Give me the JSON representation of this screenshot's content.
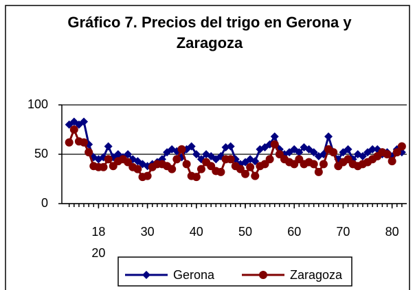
{
  "chart_data": {
    "type": "line",
    "title": "Gráfico 7. Precios del trigo en Gerona y Zaragoza",
    "x": [
      14,
      15,
      16,
      17,
      18,
      19,
      20,
      21,
      22,
      23,
      24,
      25,
      26,
      27,
      28,
      29,
      30,
      31,
      32,
      33,
      34,
      35,
      36,
      37,
      38,
      39,
      40,
      41,
      42,
      43,
      44,
      45,
      46,
      47,
      48,
      49,
      50,
      51,
      52,
      53,
      54,
      55,
      56,
      57,
      58,
      59,
      60,
      61,
      62,
      63,
      64,
      65,
      66,
      67,
      68,
      69,
      70,
      71,
      72,
      73,
      74,
      75,
      76,
      77,
      78,
      79,
      80,
      81,
      82
    ],
    "series": [
      {
        "name": "Gerona",
        "color": "#000080",
        "marker": "diamond",
        "values": [
          80,
          83,
          80,
          83,
          60,
          47,
          45,
          47,
          58,
          47,
          50,
          47,
          50,
          45,
          43,
          40,
          38,
          40,
          42,
          45,
          52,
          55,
          53,
          47,
          55,
          58,
          50,
          45,
          50,
          48,
          45,
          48,
          57,
          58,
          45,
          40,
          42,
          45,
          43,
          55,
          57,
          60,
          68,
          55,
          50,
          52,
          55,
          52,
          57,
          55,
          52,
          48,
          50,
          68,
          52,
          45,
          52,
          55,
          45,
          50,
          48,
          52,
          55,
          55,
          50,
          52,
          48,
          55,
          52
        ]
      },
      {
        "name": "Zaragoza",
        "color": "#800000",
        "marker": "circle",
        "values": [
          62,
          75,
          63,
          62,
          52,
          38,
          37,
          37,
          45,
          38,
          43,
          45,
          42,
          37,
          35,
          27,
          28,
          37,
          40,
          40,
          38,
          35,
          45,
          55,
          40,
          28,
          27,
          35,
          42,
          38,
          33,
          32,
          45,
          45,
          38,
          35,
          30,
          37,
          28,
          38,
          40,
          45,
          60,
          50,
          45,
          42,
          40,
          45,
          40,
          42,
          40,
          32,
          40,
          55,
          52,
          38,
          42,
          45,
          40,
          38,
          40,
          42,
          45,
          48,
          52,
          50,
          43,
          52,
          58
        ]
      }
    ],
    "xlim": [
      12.5,
      83
    ],
    "xticks": [
      {
        "value": 20,
        "label": "18 20"
      },
      30,
      40,
      50,
      60,
      70,
      80
    ],
    "ylim": [
      0,
      100
    ],
    "yticks": [
      0,
      50,
      100
    ],
    "grid": true,
    "legend": "bottom"
  }
}
